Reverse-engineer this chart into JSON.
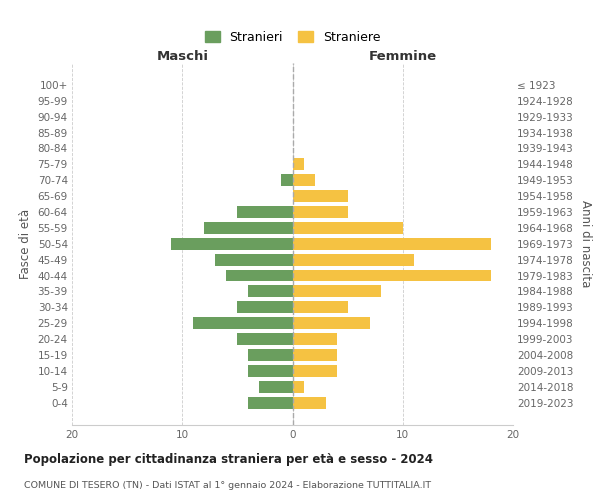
{
  "age_groups": [
    "0-4",
    "5-9",
    "10-14",
    "15-19",
    "20-24",
    "25-29",
    "30-34",
    "35-39",
    "40-44",
    "45-49",
    "50-54",
    "55-59",
    "60-64",
    "65-69",
    "70-74",
    "75-79",
    "80-84",
    "85-89",
    "90-94",
    "95-99",
    "100+"
  ],
  "birth_years": [
    "2019-2023",
    "2014-2018",
    "2009-2013",
    "2004-2008",
    "1999-2003",
    "1994-1998",
    "1989-1993",
    "1984-1988",
    "1979-1983",
    "1974-1978",
    "1969-1973",
    "1964-1968",
    "1959-1963",
    "1954-1958",
    "1949-1953",
    "1944-1948",
    "1939-1943",
    "1934-1938",
    "1929-1933",
    "1924-1928",
    "≤ 1923"
  ],
  "males": [
    4,
    3,
    4,
    4,
    5,
    9,
    5,
    4,
    6,
    7,
    11,
    8,
    5,
    0,
    1,
    0,
    0,
    0,
    0,
    0,
    0
  ],
  "females": [
    3,
    1,
    4,
    4,
    4,
    7,
    5,
    8,
    18,
    11,
    18,
    10,
    5,
    5,
    2,
    1,
    0,
    0,
    0,
    0,
    0
  ],
  "male_color": "#6a9e5e",
  "female_color": "#f5c242",
  "title": "Popolazione per cittadinanza straniera per età e sesso - 2024",
  "subtitle": "COMUNE DI TESERO (TN) - Dati ISTAT al 1° gennaio 2024 - Elaborazione TUTTITALIA.IT",
  "xlabel_left": "Maschi",
  "xlabel_right": "Femmine",
  "ylabel_left": "Fasce di età",
  "ylabel_right": "Anni di nascita",
  "legend_males": "Stranieri",
  "legend_females": "Straniere",
  "xlim": 20,
  "background_color": "#ffffff",
  "grid_color": "#cccccc",
  "bar_height": 0.75
}
